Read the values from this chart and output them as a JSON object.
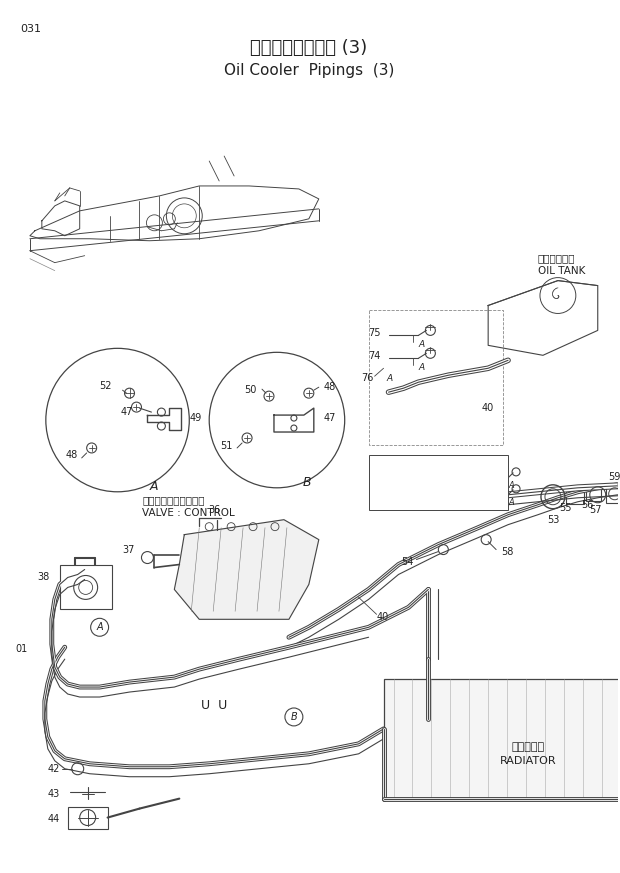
{
  "title_japanese": "オイルクーラ配管 (3)",
  "title_english": "Oil Cooler  Pipings  (3)",
  "page_number": "031",
  "bg_color": "#ffffff",
  "lc": "#444444",
  "tc": "#222222",
  "fig_w": 6.2,
  "fig_h": 8.73,
  "dpi": 100
}
